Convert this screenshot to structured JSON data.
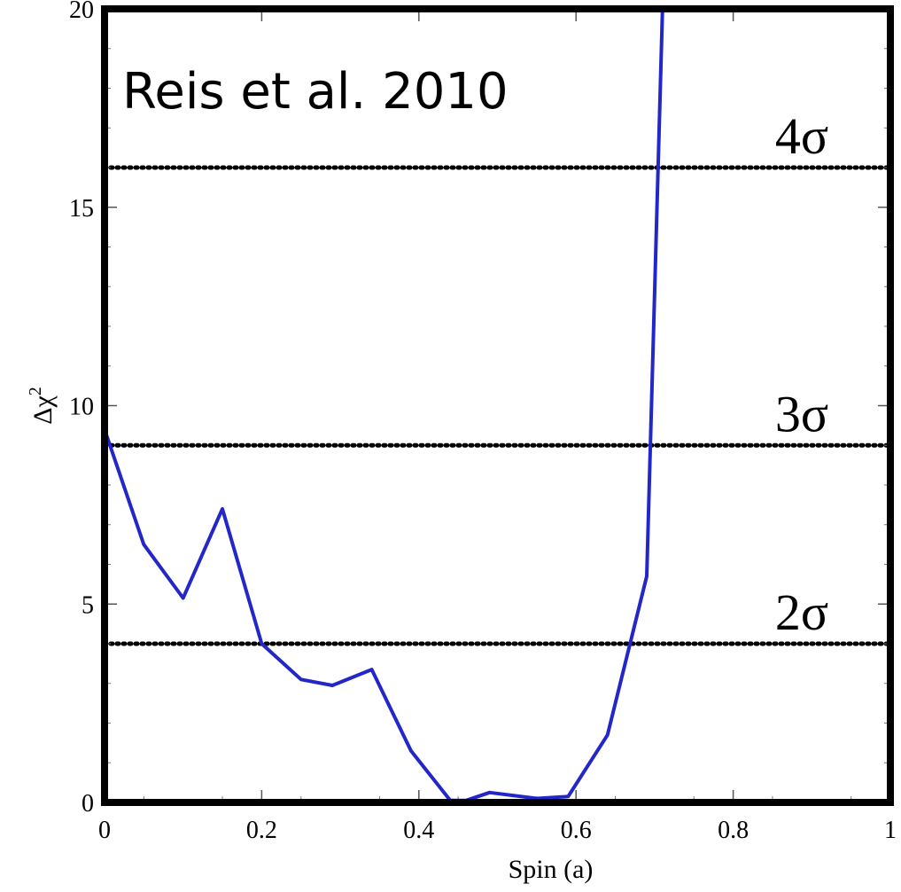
{
  "chart_data": {
    "type": "line",
    "title": "",
    "xlabel": "Spin (a)",
    "ylabel": "Δχ",
    "ylabel_superscript": "2",
    "xlim": [
      0,
      1
    ],
    "ylim": [
      0,
      20
    ],
    "x_ticks": [
      0,
      0.2,
      0.4,
      0.6,
      0.8,
      1
    ],
    "x_tick_labels": [
      "0",
      "0.2",
      "0.4",
      "0.6",
      "0.8",
      "1"
    ],
    "y_ticks": [
      0,
      5,
      10,
      15,
      20
    ],
    "y_tick_labels": [
      "0",
      "5",
      "10",
      "15",
      "20"
    ],
    "annotation": "Reis et al. 2010",
    "series": [
      {
        "color": "#2326c8",
        "x": [
          0.0,
          0.05,
          0.1,
          0.15,
          0.2,
          0.25,
          0.29,
          0.34,
          0.39,
          0.44,
          0.46,
          0.49,
          0.55,
          0.59,
          0.64,
          0.69,
          0.71
        ],
        "y": [
          9.4,
          6.5,
          5.15,
          7.4,
          4.0,
          3.1,
          2.95,
          3.35,
          1.3,
          0.05,
          0.05,
          0.25,
          0.1,
          0.15,
          1.7,
          5.7,
          20.0
        ]
      }
    ],
    "reference_lines": [
      {
        "y": 4,
        "label": "2σ"
      },
      {
        "y": 9,
        "label": "3σ"
      },
      {
        "y": 16,
        "label": "4σ"
      }
    ]
  }
}
